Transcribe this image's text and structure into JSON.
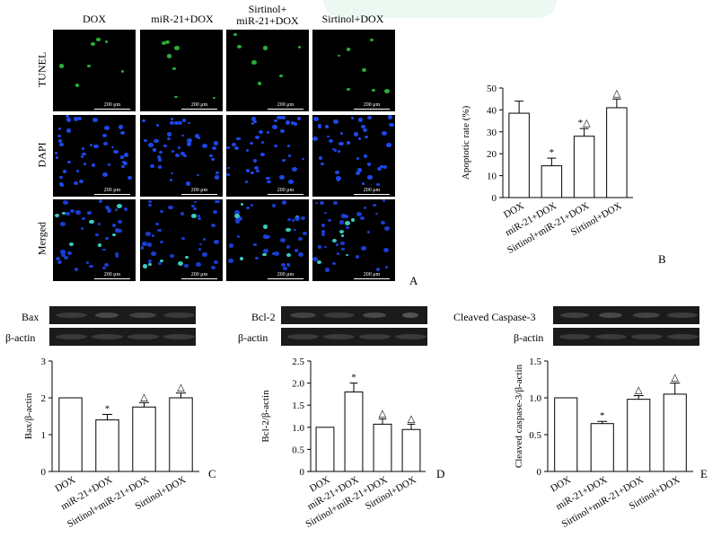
{
  "panel_a": {
    "columns": [
      "DOX",
      "miR-21+DOX",
      "Sirtinol+\nmiR-21+DOX",
      "Sirtinol+DOX"
    ],
    "rows": [
      "TUNEL",
      "DAPI",
      "Merged"
    ],
    "scale_label": "200 μm",
    "letter": "A"
  },
  "blots": {
    "c": {
      "target": "Bax",
      "loading": "β-actin"
    },
    "d": {
      "target": "Bcl-2",
      "loading": "β-actin"
    },
    "e": {
      "target": "Cleaved Caspase-3",
      "loading": "β-actin"
    }
  },
  "colors": {
    "tunel": "#2ecc40",
    "dapi": "#1f4fff",
    "bar_fill": "#ffffff",
    "stroke": "#000000"
  },
  "chart_data": [
    {
      "panel": "B",
      "type": "bar",
      "categories": [
        "DOX",
        "miR-21+DOX",
        "Sirtinol+miR-21+DOX",
        "Sirtinol+DOX"
      ],
      "values": [
        38.5,
        14.5,
        28,
        41
      ],
      "errors": [
        5.5,
        3.5,
        3.5,
        4
      ],
      "annotations": [
        "",
        "*",
        "*△",
        "△"
      ],
      "ylabel": "Apoptotic rate (%)",
      "ylim": [
        0,
        50
      ],
      "yticks": [
        "0",
        "10",
        "20",
        "30",
        "40",
        "50"
      ]
    },
    {
      "panel": "C",
      "type": "bar",
      "categories": [
        "DOX",
        "miR-21+DOX",
        "Sirtinol+miR-21+DOX",
        "Sirtinol+DOX"
      ],
      "values": [
        2.0,
        1.4,
        1.75,
        2.0
      ],
      "errors": [
        0,
        0.15,
        0.12,
        0.13
      ],
      "annotations": [
        "",
        "*",
        "△",
        "△"
      ],
      "ylabel": "Bax/β-actin",
      "ylim": [
        0,
        3
      ],
      "yticks": [
        "0",
        "1",
        "2",
        "3"
      ]
    },
    {
      "panel": "D",
      "type": "bar",
      "categories": [
        "DOX",
        "miR-21+DOX",
        "Sirtinol+miR-21+DOX",
        "Sirtinol+DOX"
      ],
      "values": [
        1.0,
        1.8,
        1.07,
        0.95
      ],
      "errors": [
        0,
        0.2,
        0.12,
        0.12
      ],
      "annotations": [
        "",
        "*",
        "△",
        "△"
      ],
      "ylabel": "Bcl-2/β-actin",
      "ylim": [
        0,
        2.5
      ],
      "yticks": [
        "0",
        "0.5",
        "1.0",
        "1.5",
        "2.0",
        "2.5"
      ]
    },
    {
      "panel": "E",
      "type": "bar",
      "categories": [
        "DOX",
        "miR-21+DOX",
        "Sirtinol+miR-21+DOX",
        "Sirtinol+DOX"
      ],
      "values": [
        1.0,
        0.65,
        0.98,
        1.05
      ],
      "errors": [
        0,
        0.03,
        0.05,
        0.15
      ],
      "annotations": [
        "",
        "*",
        "△",
        "△"
      ],
      "ylabel": "Cleaved caspase-3/β-actin",
      "ylim": [
        0,
        1.5
      ],
      "yticks": [
        "0",
        "0.5",
        "1.0",
        "1.5"
      ]
    }
  ]
}
